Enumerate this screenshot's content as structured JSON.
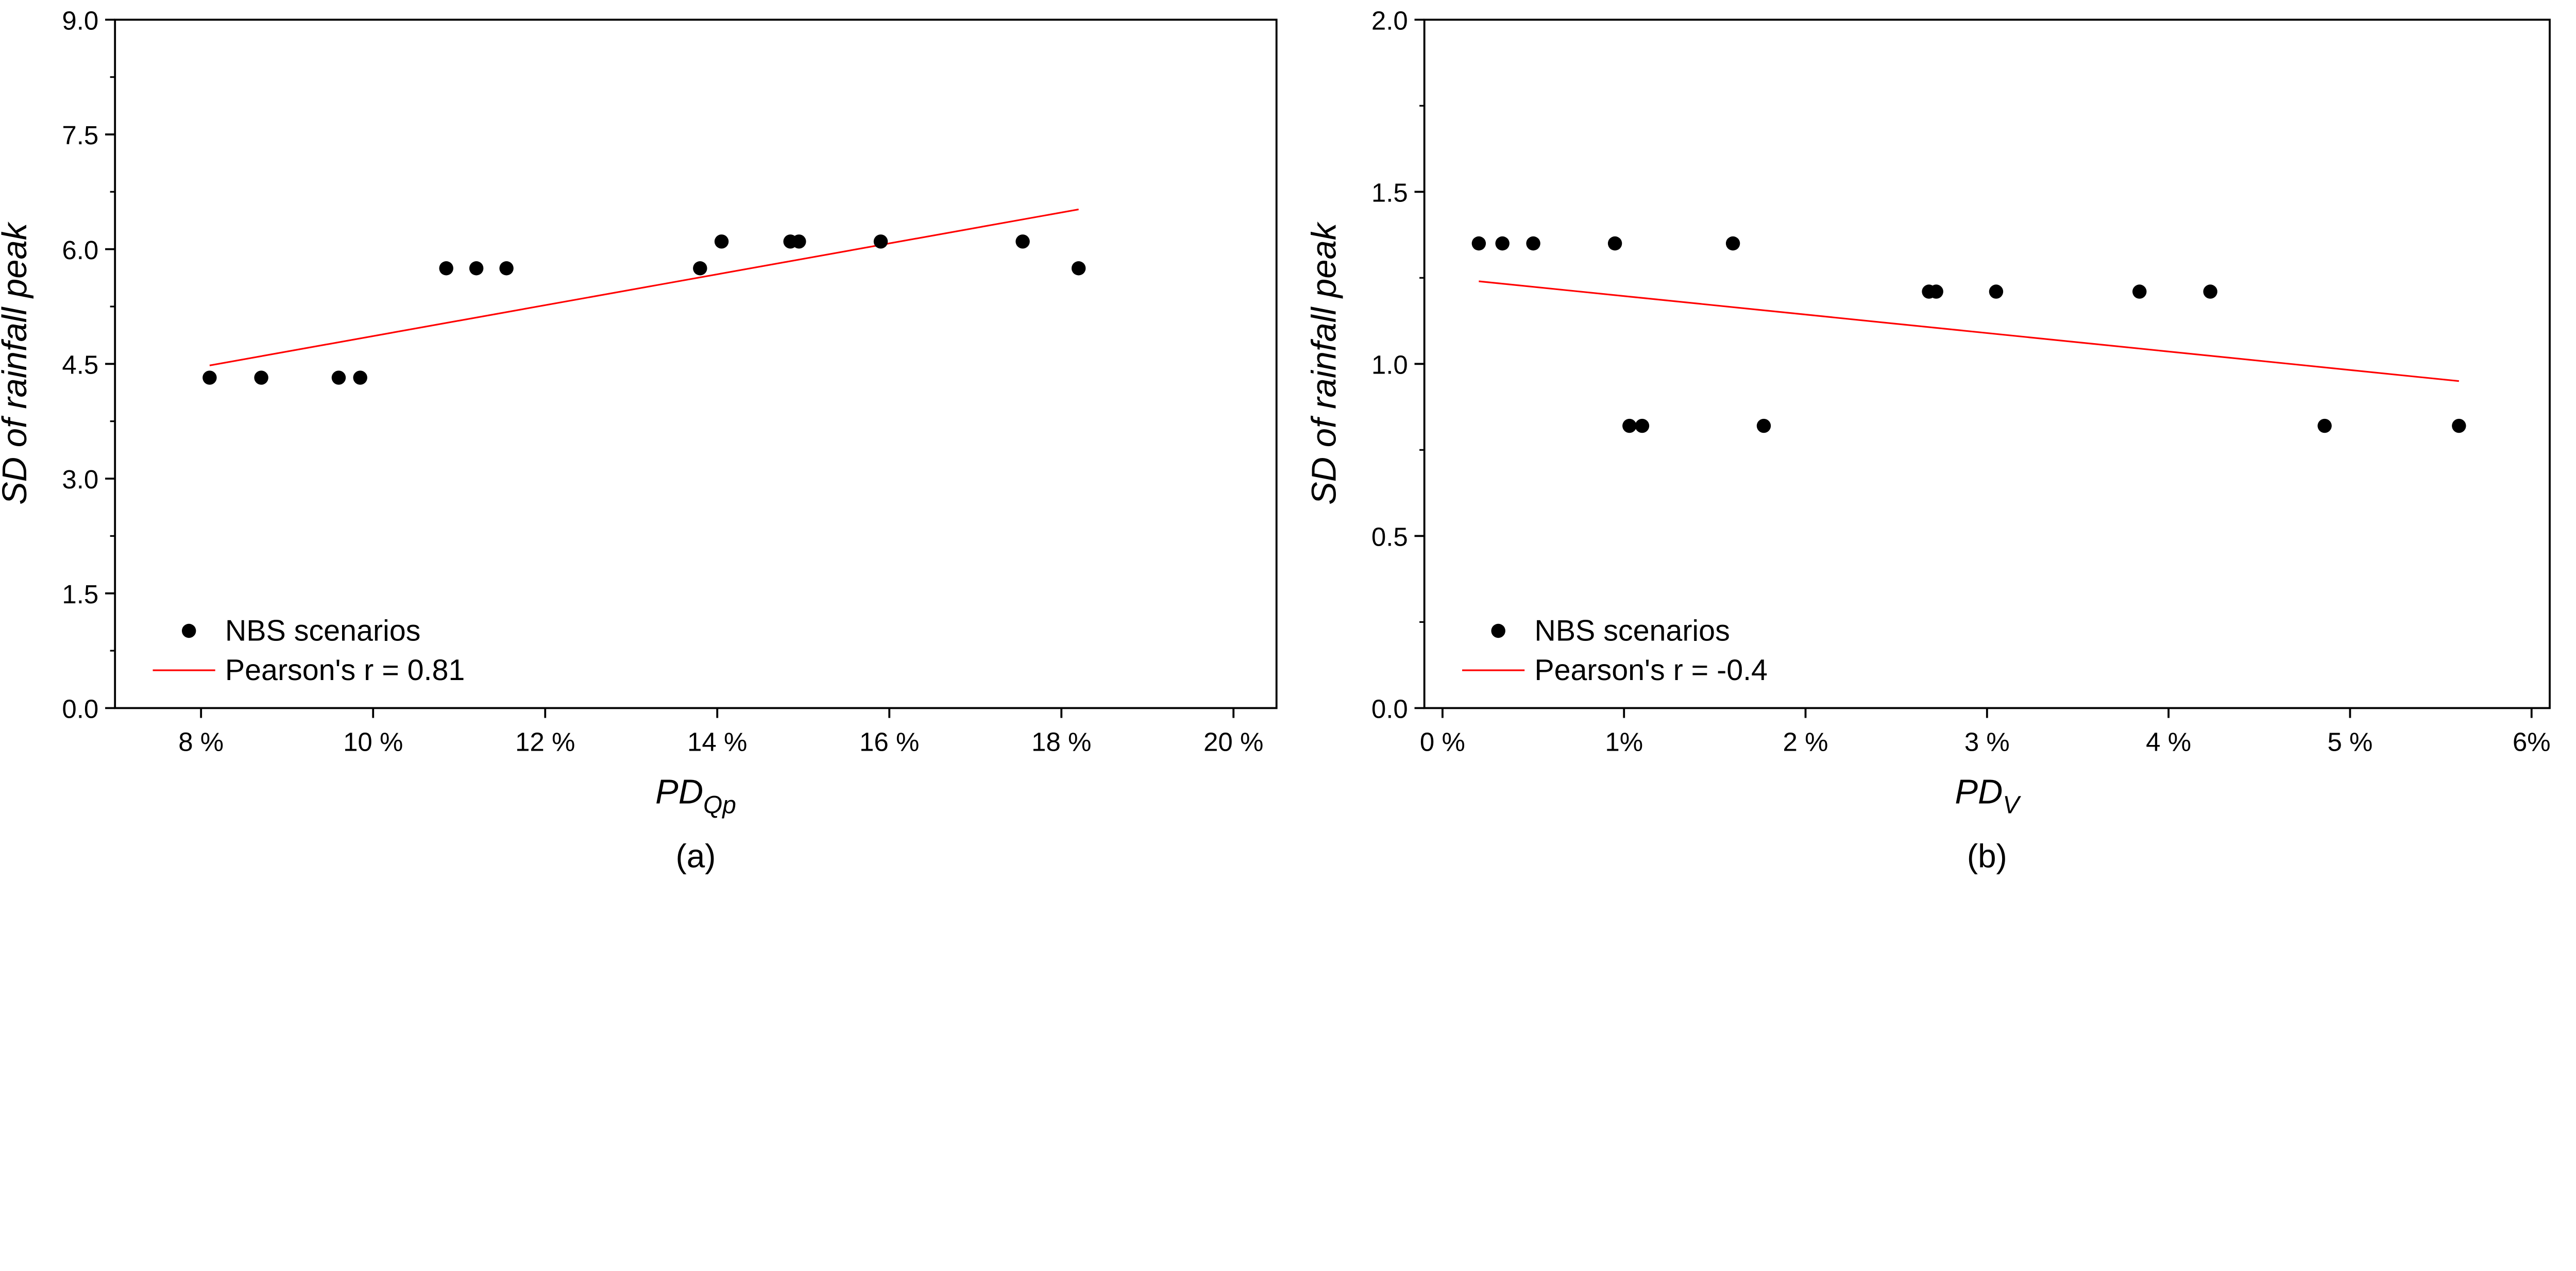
{
  "chart_data": [
    {
      "type": "scatter",
      "panel_label": "(a)",
      "xlabel_main": "PD",
      "xlabel_sub": "Qp",
      "ylabel": "SD of rainfall peak",
      "xlim": [
        7,
        20.5
      ],
      "ylim": [
        0,
        9
      ],
      "xticks": [
        8,
        10,
        12,
        14,
        16,
        18,
        20
      ],
      "xtick_labels": [
        "8 %",
        "10 %",
        "12 %",
        "14 %",
        "16 %",
        "18 %",
        "20 %"
      ],
      "yticks": [
        0,
        1.5,
        3,
        4.5,
        6,
        7.5,
        9
      ],
      "ytick_labels": [
        "0.0",
        "1.5",
        "3.0",
        "4.5",
        "6.0",
        "7.5",
        "9.0"
      ],
      "series": [
        {
          "name": "NBS scenarios",
          "kind": "points",
          "x": [
            8.1,
            8.7,
            9.6,
            9.85,
            10.85,
            11.2,
            11.55,
            13.8,
            14.05,
            14.85,
            14.95,
            15.9,
            17.55,
            18.2
          ],
          "y": [
            4.32,
            4.32,
            4.32,
            4.32,
            5.75,
            5.75,
            5.75,
            5.75,
            6.1,
            6.1,
            6.1,
            6.1,
            6.1,
            5.75
          ]
        },
        {
          "name": "Pearson's r = 0.81",
          "kind": "line",
          "color": "#ff0000",
          "x": [
            8.1,
            18.2
          ],
          "y": [
            4.48,
            6.52
          ]
        }
      ],
      "legend": [
        "NBS scenarios",
        "Pearson's r = 0.81"
      ],
      "legend_position": "bottom-left"
    },
    {
      "type": "scatter",
      "panel_label": "(b)",
      "xlabel_main": "PD",
      "xlabel_sub": "V",
      "ylabel": "SD of rainfall peak",
      "xlim": [
        -0.1,
        6.1
      ],
      "ylim": [
        0,
        2
      ],
      "xticks": [
        0,
        1,
        2,
        3,
        4,
        5,
        6
      ],
      "xtick_labels": [
        "0 %",
        "1%",
        "2 %",
        "3 %",
        "4 %",
        "5 %",
        "6%"
      ],
      "yticks": [
        0,
        0.5,
        1,
        1.5,
        2
      ],
      "ytick_labels": [
        "0.0",
        "0.5",
        "1.0",
        "1.5",
        "2.0"
      ],
      "series": [
        {
          "name": "NBS scenarios",
          "kind": "points",
          "x": [
            0.2,
            0.33,
            0.5,
            0.95,
            1.6,
            1.03,
            1.1,
            1.77,
            2.68,
            2.72,
            3.05,
            3.84,
            4.23,
            4.86,
            5.6
          ],
          "y": [
            1.35,
            1.35,
            1.35,
            1.35,
            1.35,
            0.82,
            0.82,
            0.82,
            1.21,
            1.21,
            1.21,
            1.21,
            1.21,
            0.82,
            0.82
          ]
        },
        {
          "name": "Pearson's r = -0.4",
          "kind": "line",
          "color": "#ff0000",
          "x": [
            0.2,
            5.6
          ],
          "y": [
            1.24,
            0.95
          ]
        }
      ],
      "legend": [
        "NBS scenarios",
        "Pearson's r = -0.4"
      ],
      "legend_position": "bottom-left"
    }
  ]
}
